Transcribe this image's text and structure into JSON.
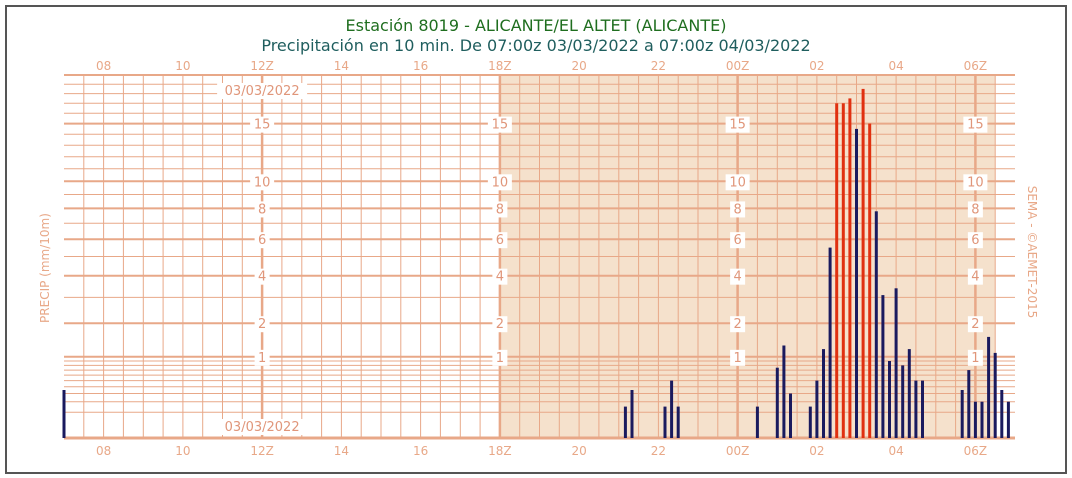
{
  "chart_data": {
    "type": "bar",
    "title": "Estación 8019 - ALICANTE/EL ALTET (ALICANTE)",
    "subtitle": "Precipitación en 10 min. De 07:00z 03/03/2022 a 07:00z 04/03/2022",
    "ylabel": "PRECIP (mm/10m)",
    "watermark": "SEMA - ©AEMET-2015",
    "date_label": "03/03/2022",
    "x_start_hour": 7,
    "x_end_hour": 31,
    "x_ticks": [
      {
        "hour": 8,
        "label": "08"
      },
      {
        "hour": 10,
        "label": "10"
      },
      {
        "hour": 12,
        "label": "12Z"
      },
      {
        "hour": 14,
        "label": "14"
      },
      {
        "hour": 16,
        "label": "16"
      },
      {
        "hour": 18,
        "label": "18Z"
      },
      {
        "hour": 20,
        "label": "20"
      },
      {
        "hour": 22,
        "label": "22"
      },
      {
        "hour": 24,
        "label": "00Z"
      },
      {
        "hour": 26,
        "label": "02"
      },
      {
        "hour": 28,
        "label": "04"
      },
      {
        "hour": 30,
        "label": "06Z"
      }
    ],
    "y_labels": [
      {
        "value": 1,
        "label": "1"
      },
      {
        "value": 2,
        "label": "2"
      },
      {
        "value": 4,
        "label": "4"
      },
      {
        "value": 6,
        "label": "6"
      },
      {
        "value": 8,
        "label": "8"
      },
      {
        "value": 10,
        "label": "10"
      },
      {
        "value": 15,
        "label": "15"
      }
    ],
    "y_scale": "sqrt",
    "ylim": [
      0,
      20
    ],
    "shaded_from_hour": 18,
    "shaded_to_hour": 30.5,
    "high_threshold": 15,
    "colors": {
      "normal": "#1a1a5e",
      "high": "#e03010",
      "grid": "#e8a888",
      "shade": "#f5e1cc",
      "title": "#1f6e1f",
      "subtitle": "#1f5e5e"
    },
    "bars": [
      {
        "t": "21:10",
        "v": 0.15
      },
      {
        "t": "21:20",
        "v": 0.35
      },
      {
        "t": "22:10",
        "v": 0.15
      },
      {
        "t": "22:20",
        "v": 0.5
      },
      {
        "t": "22:30",
        "v": 0.15
      },
      {
        "t": "00:30",
        "v": 0.15
      },
      {
        "t": "01:00",
        "v": 0.75
      },
      {
        "t": "01:10",
        "v": 1.3
      },
      {
        "t": "01:20",
        "v": 0.3
      },
      {
        "t": "01:50",
        "v": 0.15
      },
      {
        "t": "02:00",
        "v": 0.5
      },
      {
        "t": "02:10",
        "v": 1.2
      },
      {
        "t": "02:20",
        "v": 5.5
      },
      {
        "t": "02:30",
        "v": 17.0
      },
      {
        "t": "02:40",
        "v": 17.0
      },
      {
        "t": "02:50",
        "v": 17.5
      },
      {
        "t": "03:00",
        "v": 14.5
      },
      {
        "t": "03:10",
        "v": 18.5
      },
      {
        "t": "03:20",
        "v": 15.0
      },
      {
        "t": "03:30",
        "v": 7.8
      },
      {
        "t": "03:40",
        "v": 3.1
      },
      {
        "t": "03:50",
        "v": 0.9
      },
      {
        "t": "04:00",
        "v": 3.4
      },
      {
        "t": "04:10",
        "v": 0.8
      },
      {
        "t": "04:20",
        "v": 1.2
      },
      {
        "t": "04:30",
        "v": 0.5
      },
      {
        "t": "04:40",
        "v": 0.5
      },
      {
        "t": "05:40",
        "v": 0.35
      },
      {
        "t": "05:50",
        "v": 0.7
      },
      {
        "t": "06:00",
        "v": 0.2
      },
      {
        "t": "06:10",
        "v": 0.2
      },
      {
        "t": "06:20",
        "v": 1.55
      },
      {
        "t": "06:30",
        "v": 1.1
      },
      {
        "t": "06:40",
        "v": 0.35
      },
      {
        "t": "06:50",
        "v": 0.2
      },
      {
        "t": "07:00",
        "v": 0.35
      }
    ]
  }
}
